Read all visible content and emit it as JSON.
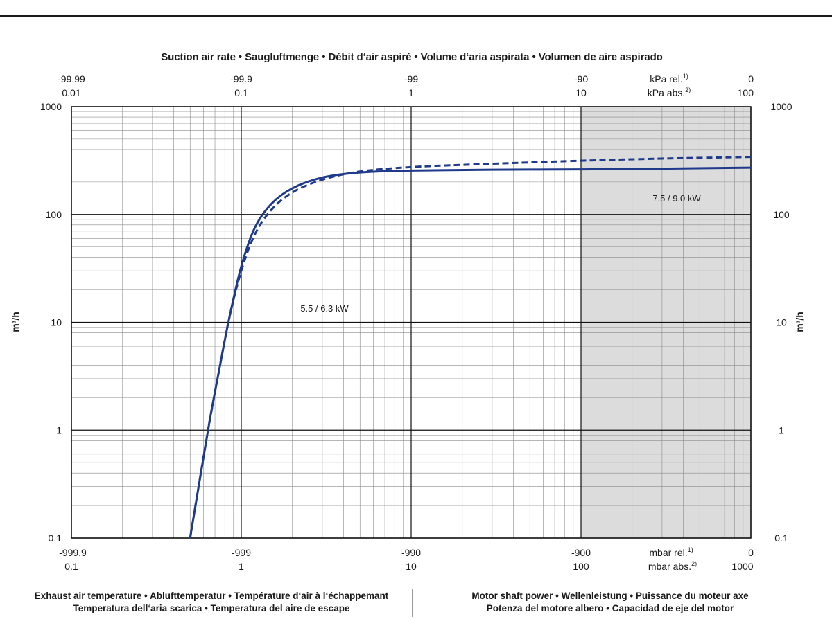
{
  "chart_data": {
    "type": "line",
    "title": "Suction air rate  •  Saugluftmenge  •  Débit d‘air aspiré  •  Volume d‘aria aspirata  •  Volumen de aire aspirado",
    "ylabel": "m³/h",
    "yscale": "log",
    "ylim": [
      0.1,
      1000
    ],
    "xscale": "log",
    "xlim": [
      0.1,
      1000
    ],
    "y_ticks": [
      "1000",
      "100",
      "10",
      "1",
      "0.1"
    ],
    "top_axis": {
      "row1": [
        "-99.99",
        "-99.9",
        "-99",
        "-90",
        "0"
      ],
      "row1_unit": "kPa rel.",
      "row1_unit_sup": "1)",
      "row2": [
        "0.01",
        "0.1",
        "1",
        "10",
        "100"
      ],
      "row2_unit": "kPa abs.",
      "row2_unit_sup": "2)"
    },
    "bottom_axis": {
      "row1": [
        "-999.9",
        "-999",
        "-990",
        "-900",
        "0"
      ],
      "row1_unit": "mbar rel.",
      "row1_unit_sup": "1)",
      "row2": [
        "0.1",
        "1",
        "10",
        "100",
        "1000"
      ],
      "row2_unit": "mbar abs.",
      "row2_unit_sup": "2)"
    },
    "shaded_region_x": [
      100,
      1000
    ],
    "grid": true,
    "color": "#1f3a8a",
    "series": [
      {
        "name": "5.5 / 6.3 kW",
        "style": "solid",
        "x": [
          0.5,
          0.57,
          0.65,
          0.75,
          0.85,
          1,
          1.2,
          1.5,
          2,
          3,
          5,
          10,
          30,
          100,
          300,
          1000
        ],
        "y": [
          0.1,
          0.35,
          1.2,
          4,
          11,
          33,
          75,
          125,
          175,
          220,
          245,
          255,
          260,
          262,
          266,
          272
        ]
      },
      {
        "name": "7.5 / 9.0 kW",
        "style": "dashed",
        "x": [
          0.5,
          0.57,
          0.65,
          0.75,
          0.85,
          1,
          1.2,
          1.5,
          2,
          3,
          5,
          10,
          30,
          100,
          300,
          1000
        ],
        "y": [
          0.1,
          0.35,
          1.2,
          4,
          11,
          30,
          65,
          110,
          160,
          210,
          250,
          275,
          295,
          315,
          330,
          342
        ]
      }
    ],
    "annotations": [
      "5.5 / 6.3 kW",
      "7.5 / 9.0 kW"
    ]
  },
  "footer": {
    "left_line1": "Exhaust air temperature  •  Ablufttemperatur  •  Température d‘air à l‘échappemant",
    "left_line2": "Temperatura dell‘aria scarica  •  Temperatura del aire de escape",
    "right_line1": "Motor shaft power  •  Wellenleistung  •  Puissance du moteur axe",
    "right_line2": "Potenza del motore albero  •  Capacidad de eje del motor"
  }
}
